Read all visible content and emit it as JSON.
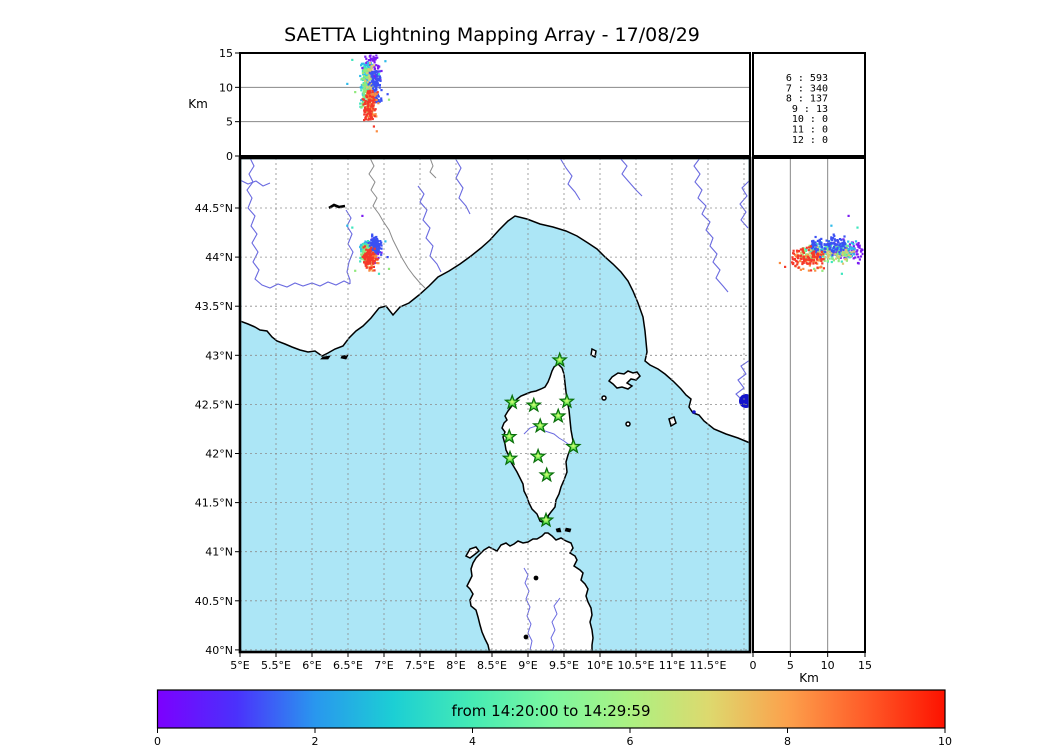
{
  "title": "SAETTA Lightning Mapping Array - 17/08/29",
  "top_panel": {
    "ylabel": "Km",
    "yticks": [
      "0",
      "5",
      "10",
      "15"
    ],
    "grid_alts": [
      5,
      10
    ]
  },
  "stats_box": {
    "rows": [
      {
        "id": "6",
        "value": "593",
        "highlight": false
      },
      {
        "id": "7",
        "value": "340",
        "highlight": true
      },
      {
        "id": "8",
        "value": "137",
        "highlight": false
      },
      {
        "id": "9",
        "value": "13",
        "highlight": false
      },
      {
        "id": "10",
        "value": "0",
        "highlight": false
      },
      {
        "id": "11",
        "value": "0",
        "highlight": false
      },
      {
        "id": "12",
        "value": "0",
        "highlight": false
      }
    ]
  },
  "map_panel": {
    "lon_ticks": [
      "5°E",
      "5.5°E",
      "6°E",
      "6.5°E",
      "7°E",
      "7.5°E",
      "8°E",
      "8.5°E",
      "9°E",
      "9.5°E",
      "10°E",
      "10.5°E",
      "11°E",
      "11.5°E"
    ],
    "lon_values": [
      5,
      5.5,
      6,
      6.5,
      7,
      7.5,
      8,
      8.5,
      9,
      9.5,
      10,
      10.5,
      11,
      11.5
    ],
    "lat_ticks": [
      "44.5°N",
      "44°N",
      "43.5°N",
      "43°N",
      "42.5°N",
      "42°N",
      "41.5°N",
      "41°N",
      "40.5°N",
      "40°N"
    ],
    "lat_values": [
      44.5,
      44,
      43.5,
      43,
      42.5,
      42,
      41.5,
      41,
      40.5,
      40
    ]
  },
  "right_panel": {
    "xlabel": "Km",
    "xticks": [
      "0",
      "5",
      "10",
      "15"
    ],
    "xtick_values": [
      0,
      5,
      10,
      15
    ],
    "grid_alts": [
      5,
      10
    ]
  },
  "colorbar": {
    "label": "from 14:20:00 to 14:29:59",
    "ticks": [
      "0",
      "2",
      "4",
      "6",
      "8",
      "10"
    ],
    "gradient_stops": [
      {
        "t": 0.0,
        "color": "#7C00FE"
      },
      {
        "t": 0.1,
        "color": "#4B31FC"
      },
      {
        "t": 0.2,
        "color": "#2997EE"
      },
      {
        "t": 0.3,
        "color": "#1CCFD4"
      },
      {
        "t": 0.4,
        "color": "#45EBB4"
      },
      {
        "t": 0.5,
        "color": "#7CF8A0"
      },
      {
        "t": 0.6,
        "color": "#ACF182"
      },
      {
        "t": 0.7,
        "color": "#DDD96E"
      },
      {
        "t": 0.8,
        "color": "#FCA14C"
      },
      {
        "t": 0.9,
        "color": "#FF5B28"
      },
      {
        "t": 1.0,
        "color": "#FD1200"
      }
    ]
  },
  "chart_data": {
    "type": "scatter",
    "title": "SAETTA Lightning Mapping Array - 17/08/29",
    "time_window": {
      "start": "14:20:00",
      "end": "14:29:59"
    },
    "panels": [
      {
        "id": "alt-vs-lon",
        "x": "longitude_degE",
        "x_range": [
          5.0,
          12.08
        ],
        "y": "altitude_km",
        "y_range": [
          0,
          15
        ]
      },
      {
        "id": "map",
        "x": "longitude_degE",
        "x_range": [
          5.0,
          12.08
        ],
        "y": "latitude_degN",
        "y_range": [
          39.98,
          45.01
        ]
      },
      {
        "id": "alt-vs-lat",
        "x": "altitude_km",
        "x_range": [
          0,
          15
        ],
        "y": "latitude_degN",
        "y_range": [
          39.98,
          45.01
        ]
      }
    ],
    "source_counts": {
      "6": 593,
      "7": 340,
      "8": 137,
      "9": 13,
      "10": 0,
      "11": 0,
      "12": 0
    },
    "lightning_cell": {
      "lon_center": 6.8,
      "lat_center": 44.05,
      "alt_range_km": [
        5.2,
        14.7
      ]
    },
    "clusters": [
      {
        "name": "t0-purple",
        "color": "#7B1DF2",
        "n": 70,
        "lon_c": 6.84,
        "lon_s": 0.05,
        "lat_c": 44.06,
        "lat_s": 0.055,
        "alt_min": 11.0,
        "alt_max": 14.7
      },
      {
        "name": "t1-cyan",
        "color": "#2FBBEA",
        "n": 65,
        "lon_c": 6.77,
        "lon_s": 0.04,
        "lat_c": 44.08,
        "lat_s": 0.04,
        "alt_min": 7.8,
        "alt_max": 13.6
      },
      {
        "name": "t2-teal",
        "color": "#3FE6BE",
        "n": 70,
        "lon_c": 6.75,
        "lon_s": 0.038,
        "lat_c": 44.05,
        "lat_s": 0.045,
        "alt_min": 7.0,
        "alt_max": 13.0
      },
      {
        "name": "t3-green",
        "color": "#90E97C",
        "n": 85,
        "lon_c": 6.765,
        "lon_s": 0.038,
        "lat_c": 44.03,
        "lat_s": 0.045,
        "alt_min": 6.4,
        "alt_max": 12.6
      },
      {
        "name": "t4-tan",
        "color": "#DCC874",
        "n": 55,
        "lon_c": 6.81,
        "lon_s": 0.028,
        "lat_c": 44.02,
        "lat_s": 0.035,
        "alt_min": 6.2,
        "alt_max": 13.6
      },
      {
        "name": "t5-blue",
        "color": "#3B51F3",
        "n": 110,
        "lon_c": 6.875,
        "lon_s": 0.042,
        "lat_c": 44.12,
        "lat_s": 0.045,
        "alt_min": 7.8,
        "alt_max": 12.4
      },
      {
        "name": "t6-orange",
        "color": "#FB8C40",
        "n": 55,
        "lon_c": 6.83,
        "lon_s": 0.04,
        "lat_c": 43.96,
        "lat_s": 0.04,
        "alt_min": 5.6,
        "alt_max": 9.2
      },
      {
        "name": "t7-red",
        "color": "#F5392A",
        "n": 90,
        "lon_c": 6.8,
        "lon_s": 0.045,
        "lat_c": 43.99,
        "lat_s": 0.05,
        "alt_min": 5.2,
        "alt_max": 9.5
      }
    ],
    "outliers": [
      {
        "lon": 6.56,
        "lat": 44.3,
        "alt": 14.0,
        "color": "#3FE6BE"
      },
      {
        "lon": 6.6,
        "lat": 43.86,
        "alt": 9.3,
        "color": "#90E97C"
      },
      {
        "lon": 7.05,
        "lat": 44.0,
        "alt": 9.0,
        "color": "#3B51F3"
      },
      {
        "lon": 7.07,
        "lat": 43.88,
        "alt": 8.2,
        "color": "#90E97C"
      },
      {
        "lon": 6.49,
        "lat": 44.32,
        "alt": 10.5,
        "color": "#2FBBEA"
      },
      {
        "lon": 6.93,
        "lat": 43.83,
        "alt": 11.9,
        "color": "#3FE6BE"
      },
      {
        "lon": 6.86,
        "lat": 43.9,
        "alt": 4.3,
        "color": "#F5392A"
      },
      {
        "lon": 6.9,
        "lat": 43.94,
        "alt": 3.6,
        "color": "#FB8C40"
      },
      {
        "lon": 6.7,
        "lat": 44.42,
        "alt": 12.8,
        "color": "#7B1DF2"
      },
      {
        "lon": 7.02,
        "lat": 44.16,
        "alt": 13.8,
        "color": "#2FBBEA"
      }
    ],
    "stations_lon_lat": [
      [
        9.44,
        42.95
      ],
      [
        8.78,
        42.52
      ],
      [
        9.08,
        42.49
      ],
      [
        9.54,
        42.53
      ],
      [
        9.42,
        42.38
      ],
      [
        9.17,
        42.28
      ],
      [
        8.74,
        42.17
      ],
      [
        9.63,
        42.07
      ],
      [
        9.14,
        41.97
      ],
      [
        8.75,
        41.95
      ],
      [
        9.26,
        41.78
      ],
      [
        9.25,
        41.32
      ]
    ],
    "map_landmarks": {
      "lake_bolsena": {
        "lon": 12.03,
        "lat": 42.53
      },
      "lake_serre_poncon": {
        "lon": 6.33,
        "lat": 44.52
      }
    }
  },
  "colors": {
    "sea": "#ACE6F6",
    "land": "#FFFFFF",
    "coast": "#000000",
    "river": "#6A6AE0",
    "country_border": "#8A8A8A",
    "map_grid": "#8C8C8C",
    "panel_grid": "#888888",
    "star_fill": "#2ED435",
    "star_edge": "#0A6E0A",
    "lake": "#1414CC",
    "stats_highlight": "#E8190F"
  }
}
